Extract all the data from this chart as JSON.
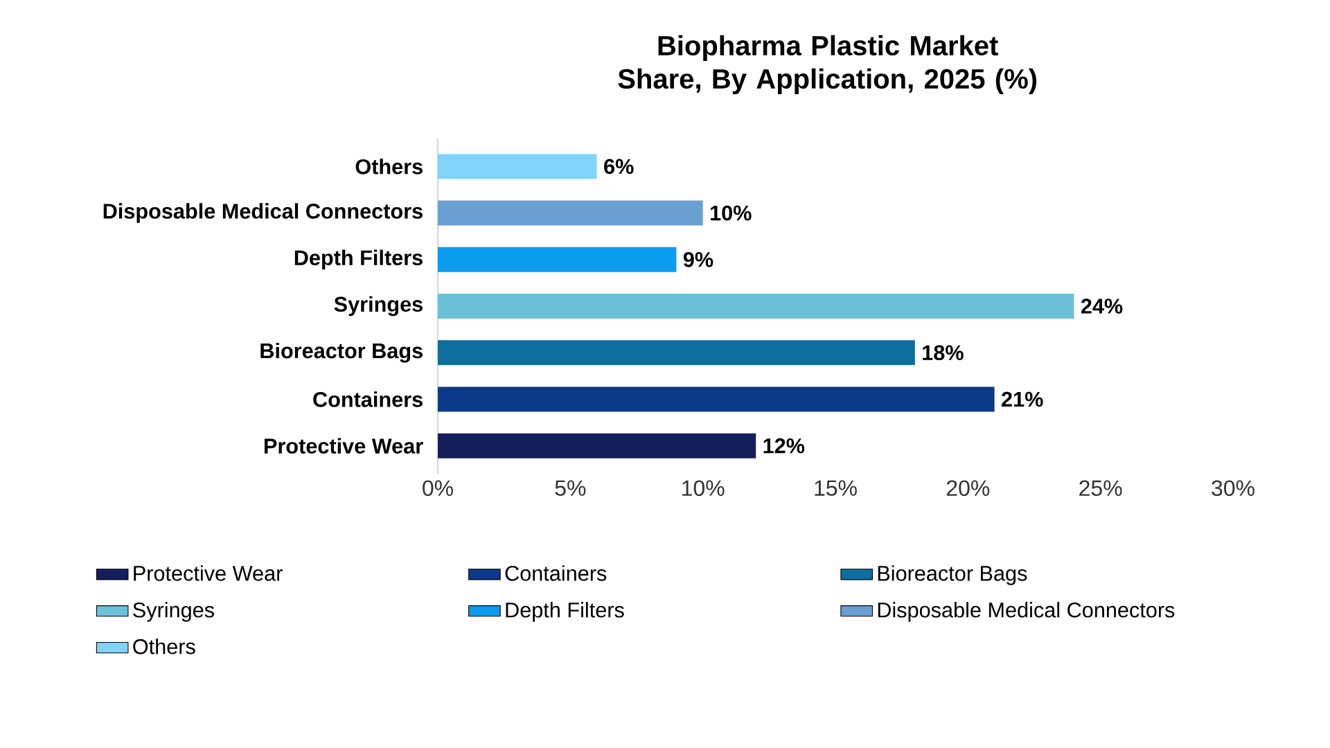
{
  "chart_data": {
    "type": "bar",
    "orientation": "horizontal",
    "title": "Biopharma Plastic Market Share, By Application, 2025 (%)",
    "categories": [
      "Others",
      "Disposable Medical Connectors",
      "Depth Filters",
      "Syringes",
      "Bioreactor Bags",
      "Containers",
      "Protective Wear"
    ],
    "series": [
      {
        "name": "Protective Wear",
        "color": "#141e5a",
        "values": [
          null,
          null,
          null,
          null,
          null,
          null,
          12
        ],
        "value_labels": [
          null,
          null,
          null,
          null,
          null,
          null,
          "12%"
        ]
      },
      {
        "name": "Containers",
        "color": "#0c3a8a",
        "values": [
          null,
          null,
          null,
          null,
          null,
          21,
          null
        ],
        "value_labels": [
          null,
          null,
          null,
          null,
          null,
          "21%",
          null
        ]
      },
      {
        "name": "Bioreactor Bags",
        "color": "#0e6e9e",
        "values": [
          null,
          null,
          null,
          null,
          18,
          null,
          null
        ],
        "value_labels": [
          null,
          null,
          null,
          null,
          "18%",
          null,
          null
        ]
      },
      {
        "name": "Syringes",
        "color": "#6cc0d8",
        "values": [
          null,
          null,
          null,
          24,
          null,
          null,
          null
        ],
        "value_labels": [
          null,
          null,
          null,
          "24%",
          null,
          null,
          null
        ]
      },
      {
        "name": "Depth Filters",
        "color": "#0b9cf0",
        "values": [
          null,
          null,
          9,
          null,
          null,
          null,
          null
        ],
        "value_labels": [
          null,
          null,
          "9%",
          null,
          null,
          null,
          null
        ]
      },
      {
        "name": "Disposable Medical Connectors",
        "color": "#6a9fd4",
        "values": [
          null,
          10,
          null,
          null,
          null,
          null,
          null
        ],
        "value_labels": [
          null,
          "10%",
          null,
          null,
          null,
          null,
          null
        ]
      },
      {
        "name": "Others",
        "color": "#80d4fa",
        "values": [
          6,
          null,
          null,
          null,
          null,
          null,
          null
        ],
        "value_labels": [
          "6%",
          null,
          null,
          null,
          null,
          null,
          null
        ]
      }
    ],
    "xlim": [
      0,
      30
    ],
    "xticks": [
      {
        "value": 0,
        "label": "0%"
      },
      {
        "value": 5,
        "label": "5%"
      },
      {
        "value": 10,
        "label": "10%"
      },
      {
        "value": 15,
        "label": "15%"
      },
      {
        "value": 20,
        "label": "20%"
      },
      {
        "value": 25,
        "label": "25%"
      },
      {
        "value": 30,
        "label": "30%"
      }
    ],
    "legend": "bottom"
  }
}
